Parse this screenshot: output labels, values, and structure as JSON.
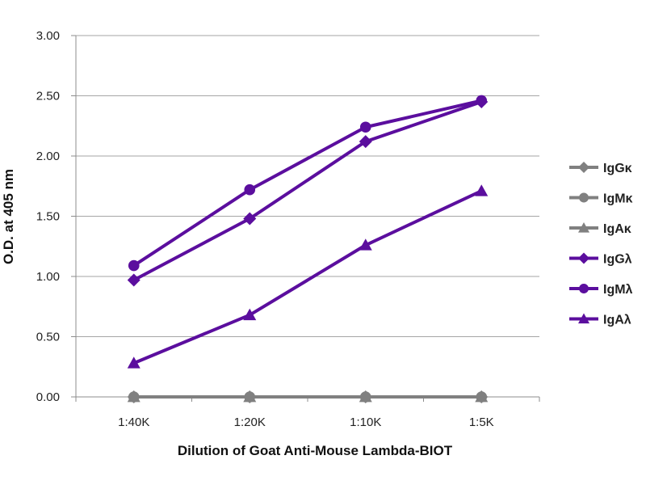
{
  "chart_data": {
    "type": "line",
    "title": "",
    "xlabel": "Dilution of Goat Anti-Mouse Lambda-BIOT",
    "ylabel": "O.D. at 405 nm",
    "categories": [
      "1:40K",
      "1:20K",
      "1:10K",
      "1:5K"
    ],
    "ylim": [
      0,
      3
    ],
    "yticks": [
      "0.00",
      "0.50",
      "1.00",
      "1.50",
      "2.00",
      "2.50",
      "3.00"
    ],
    "ytick_values": [
      0,
      0.5,
      1,
      1.5,
      2,
      2.5,
      3
    ],
    "grid": true,
    "legend_position": "right",
    "series": [
      {
        "name": "IgGκ",
        "values": [
          0.0,
          0.0,
          0.0,
          0.0
        ],
        "color": "#808080",
        "marker": "diamond"
      },
      {
        "name": "IgMκ",
        "values": [
          0.0,
          0.0,
          0.0,
          0.0
        ],
        "color": "#808080",
        "marker": "circle"
      },
      {
        "name": "IgAκ",
        "values": [
          0.0,
          0.0,
          0.0,
          0.0
        ],
        "color": "#808080",
        "marker": "triangle"
      },
      {
        "name": "IgGλ",
        "values": [
          0.97,
          1.48,
          2.12,
          2.45
        ],
        "color": "#5B0E9E",
        "marker": "diamond"
      },
      {
        "name": "IgMλ",
        "values": [
          1.09,
          1.72,
          2.24,
          2.46
        ],
        "color": "#5B0E9E",
        "marker": "circle"
      },
      {
        "name": "IgAλ",
        "values": [
          0.28,
          0.68,
          1.26,
          1.71
        ],
        "color": "#5B0E9E",
        "marker": "triangle"
      }
    ]
  }
}
